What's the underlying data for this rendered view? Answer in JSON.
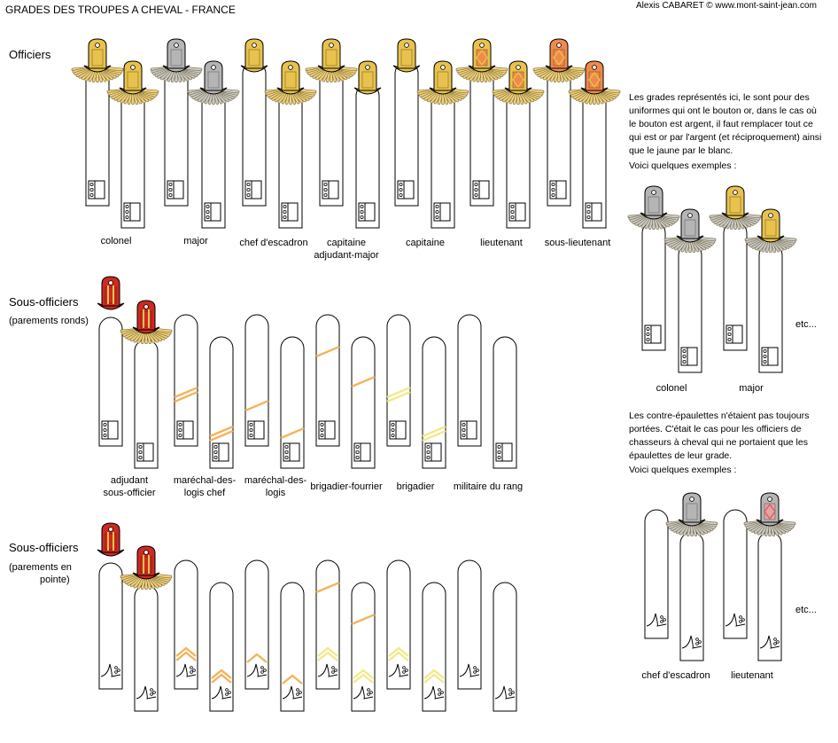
{
  "title": "GRADES DES TROUPES A CHEVAL - FRANCE",
  "credit": "Alexis CABARET © www.mont-saint-jean.com",
  "colors": {
    "gold": "#e8c24c",
    "gold_fringe": "#edd07a",
    "silver": "#b5b5b5",
    "silver_fringe": "#c8c8c8",
    "red": "#cc2a22",
    "orange": "#f08a4a",
    "pink": "#e6a3a3",
    "stripe_orange": "#f4b35a",
    "stripe_yellow": "#f0ea8a",
    "outline": "#000000",
    "cloth": "#ffffff"
  },
  "sections": {
    "officers": {
      "heading": "Officiers",
      "captions": [
        "colonel",
        "major",
        "chef d'escadron",
        "capitaine\nadjudant-major",
        "capitaine",
        "lieutenant",
        "sous-lieutenant"
      ]
    },
    "nco_round": {
      "heading": "Sous-officiers",
      "sub": "(parements ronds)",
      "captions": [
        "adjudant\nsous-officier",
        "maréchal-des-\nlogis chef",
        "maréchal-des-\nlogis",
        "brigadier-fourrier",
        "brigadier",
        "militaire du rang"
      ]
    },
    "nco_pointed": {
      "heading": "Sous-officiers",
      "sub_line1": "(parements en",
      "sub_line2": "pointe)"
    }
  },
  "notes": {
    "silver_note": "Les grades représentés ici, le sont pour des uniformes qui ont le bouton or, dans le cas où le bouton est argent, il faut remplacer tout ce qui est or par l'argent (et réciproquement) ainsi que le jaune par le blanc.",
    "examples_label": "Voici quelques exemples :",
    "silver_captions": [
      "colonel",
      "major"
    ],
    "etc": "etc...",
    "contre_note": "Les contre-épaulettes n'étaient pas toujours portées. C'était le cas pour les officiers de chasseurs à cheval qui ne portaient que les épaulettes de leur grade.",
    "examples_label_2": "Voici quelques exemples :",
    "contre_captions": [
      "chef d'escadron",
      "lieutenant"
    ],
    "etc_2": "etc..."
  },
  "icons": [
    "epaulette-icon",
    "sleeve-cuff-icon",
    "cuff-button-icon",
    "rank-stripe-icon",
    "chevron-icon"
  ]
}
